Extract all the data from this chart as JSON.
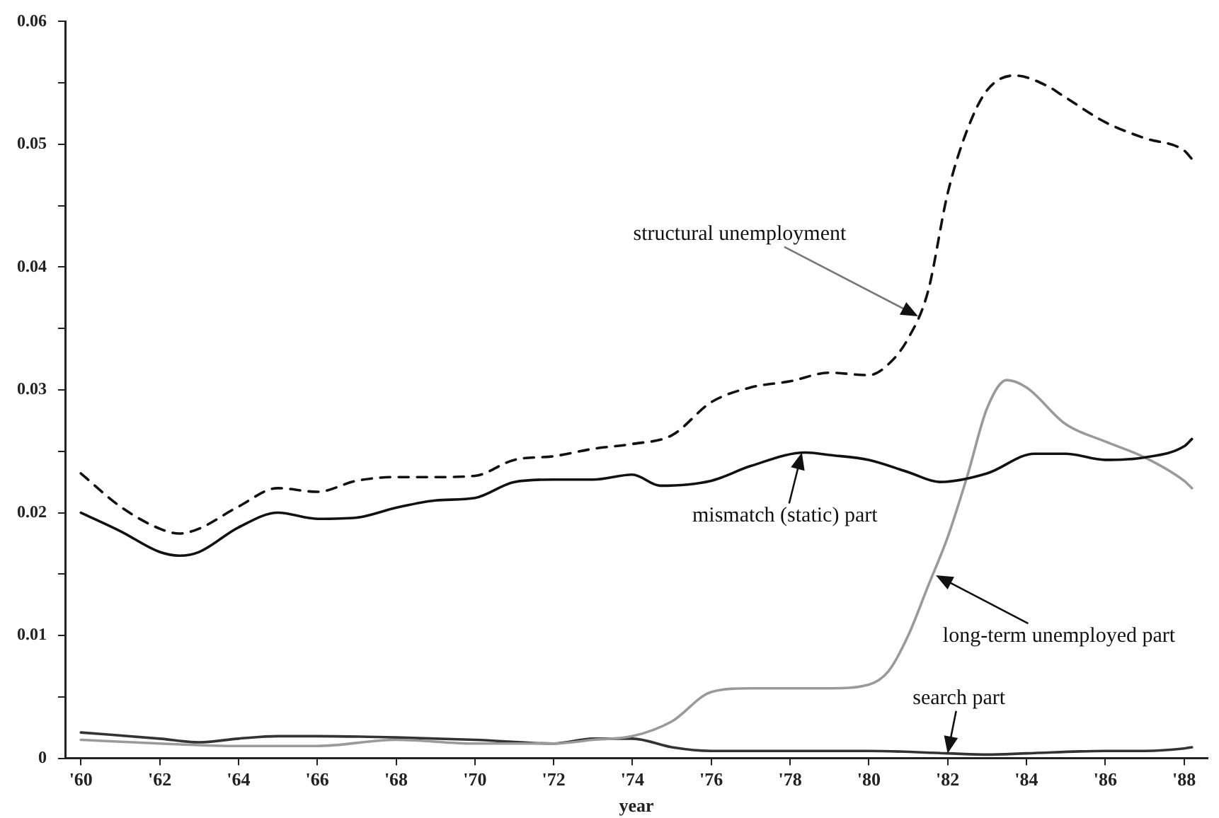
{
  "chart_data": {
    "type": "line",
    "xlabel": "year",
    "xlim": [
      1959.6,
      1988.6
    ],
    "ylim": [
      0,
      0.06
    ],
    "xticks": [
      {
        "value": 1960,
        "label": "'60"
      },
      {
        "value": 1962,
        "label": "'62"
      },
      {
        "value": 1964,
        "label": "'64"
      },
      {
        "value": 1966,
        "label": "'66"
      },
      {
        "value": 1968,
        "label": "'68"
      },
      {
        "value": 1970,
        "label": "'70"
      },
      {
        "value": 1972,
        "label": "'72"
      },
      {
        "value": 1974,
        "label": "'74"
      },
      {
        "value": 1976,
        "label": "'76"
      },
      {
        "value": 1978,
        "label": "'78"
      },
      {
        "value": 1980,
        "label": "'80"
      },
      {
        "value": 1982,
        "label": "'82"
      },
      {
        "value": 1984,
        "label": "'84"
      },
      {
        "value": 1986,
        "label": "'86"
      },
      {
        "value": 1988,
        "label": "'88"
      }
    ],
    "yticks": [
      0,
      {
        "value": 0.005,
        "label": null
      },
      0.01,
      {
        "value": 0.015,
        "label": null
      },
      0.02,
      {
        "value": 0.025,
        "label": null
      },
      0.03,
      {
        "value": 0.035,
        "label": null
      },
      0.04,
      {
        "value": 0.045,
        "label": null
      },
      0.05,
      {
        "value": 0.055,
        "label": null
      },
      0.06
    ],
    "grid": false,
    "legend": false,
    "marker": "none",
    "series": [
      {
        "color": "#111111",
        "line_style": "dashed",
        "x": [
          1960,
          1961,
          1962,
          1962.5,
          1963,
          1964,
          1965,
          1966,
          1967,
          1968,
          1969,
          1970,
          1971,
          1972,
          1973,
          1974,
          1975,
          1976,
          1977,
          1978,
          1979,
          1980,
          1980.5,
          1981,
          1981.5,
          1982,
          1982.5,
          1983,
          1983.7,
          1984.5,
          1985,
          1986,
          1987,
          1988,
          1988.2
        ],
        "values": [
          0.0232,
          0.0205,
          0.0187,
          0.0183,
          0.0187,
          0.0205,
          0.022,
          0.0217,
          0.0226,
          0.0229,
          0.0229,
          0.023,
          0.0243,
          0.0246,
          0.0252,
          0.0256,
          0.0263,
          0.029,
          0.0302,
          0.0307,
          0.0314,
          0.0312,
          0.0321,
          0.0342,
          0.038,
          0.046,
          0.0512,
          0.0544,
          0.0556,
          0.0548,
          0.0538,
          0.0518,
          0.0505,
          0.0495,
          0.0488
        ]
      },
      {
        "color": "#111111",
        "line_style": "solid",
        "x": [
          1960,
          1961,
          1962,
          1962.5,
          1963,
          1964,
          1965,
          1966,
          1967,
          1968,
          1969,
          1970,
          1971,
          1972,
          1973,
          1974,
          1974.7,
          1976,
          1977,
          1978.4,
          1979,
          1980,
          1981,
          1981.8,
          1983,
          1984.2,
          1985,
          1986,
          1987,
          1988,
          1988.2
        ],
        "values": [
          0.02,
          0.0185,
          0.0168,
          0.0165,
          0.0168,
          0.0188,
          0.02,
          0.0195,
          0.0196,
          0.0204,
          0.021,
          0.0212,
          0.0225,
          0.0227,
          0.0227,
          0.0231,
          0.0222,
          0.0226,
          0.0238,
          0.0249,
          0.0247,
          0.0243,
          0.0233,
          0.0225,
          0.0232,
          0.0248,
          0.0248,
          0.0243,
          0.0245,
          0.0254,
          0.026
        ]
      },
      {
        "color": "#9a9a9a",
        "line_style": "solid",
        "x": [
          1960,
          1962,
          1964,
          1966,
          1968,
          1970,
          1972,
          1973,
          1974,
          1975,
          1976,
          1977,
          1978,
          1979,
          1980,
          1980.5,
          1981,
          1981.5,
          1982,
          1982.5,
          1983,
          1983.5,
          1984,
          1985,
          1986,
          1987,
          1988,
          1988.2
        ],
        "values": [
          0.0015,
          0.0012,
          0.001,
          0.001,
          0.0015,
          0.0012,
          0.0012,
          0.0015,
          0.0018,
          0.003,
          0.0054,
          0.0057,
          0.0057,
          0.0057,
          0.006,
          0.0071,
          0.01,
          0.014,
          0.018,
          0.023,
          0.0285,
          0.0308,
          0.0302,
          0.0272,
          0.0258,
          0.0245,
          0.0226,
          0.022
        ]
      },
      {
        "color": "#333333",
        "line_style": "solid",
        "x": [
          1960,
          1962,
          1963,
          1964,
          1965,
          1966,
          1968,
          1970,
          1972,
          1973,
          1974,
          1975,
          1976,
          1978,
          1980,
          1982,
          1983,
          1984,
          1986,
          1987,
          1988,
          1988.2
        ],
        "values": [
          0.0021,
          0.0016,
          0.0013,
          0.0016,
          0.0018,
          0.0018,
          0.0017,
          0.0015,
          0.0012,
          0.0016,
          0.0016,
          0.0009,
          0.0006,
          0.0006,
          0.0006,
          0.0004,
          0.0003,
          0.0004,
          0.0006,
          0.0006,
          0.0008,
          0.0009
        ]
      }
    ],
    "annotations": [
      {
        "text": "structural unemployment",
        "x": 1981.25,
        "y": 0.036
      },
      {
        "text": "mismatch (static) part",
        "x": 1978.3,
        "y": 0.0249
      },
      {
        "text": "long-term unemployed part",
        "x": 1981.7,
        "y": 0.0149
      },
      {
        "text": "search part",
        "x": 1982,
        "y": 0.0004
      }
    ]
  }
}
